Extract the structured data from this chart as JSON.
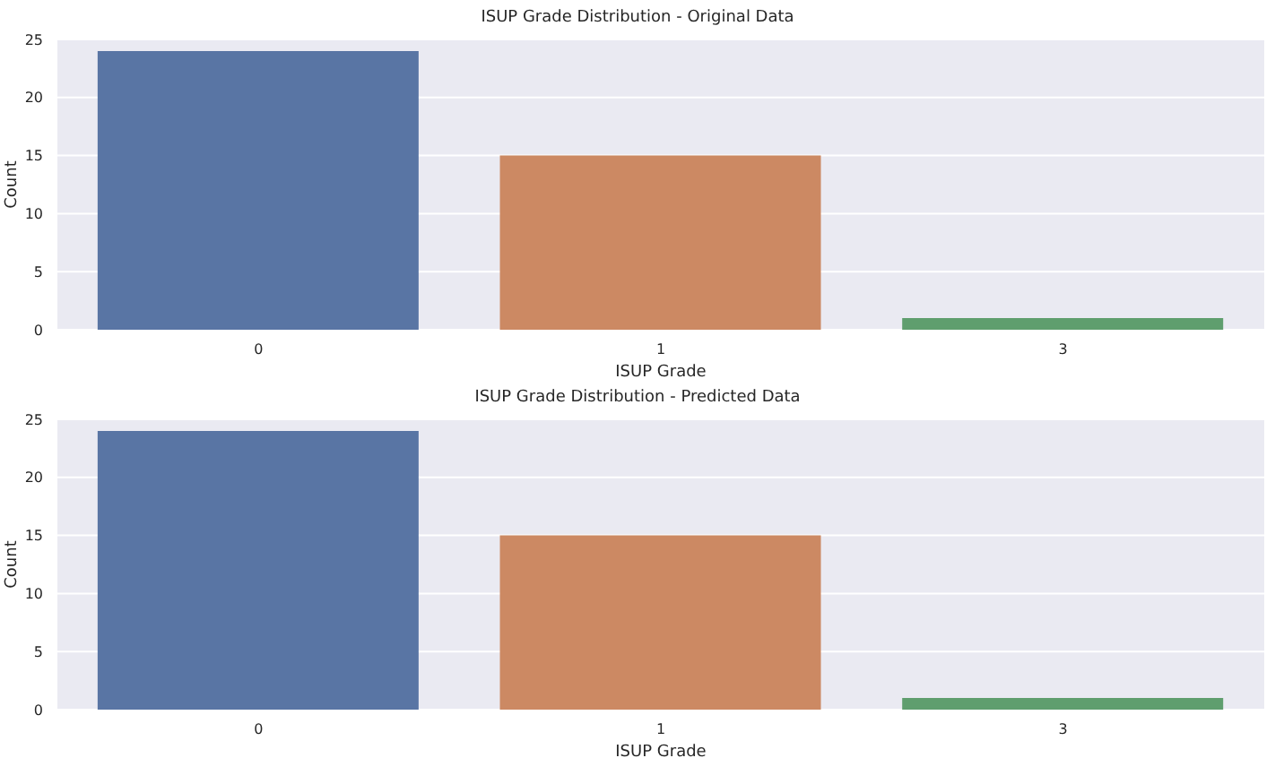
{
  "chart_data": [
    {
      "type": "bar",
      "title": "ISUP Grade Distribution - Original Data",
      "xlabel": "ISUP Grade",
      "ylabel": "Count",
      "categories": [
        "0",
        "1",
        "3"
      ],
      "values": [
        24,
        15,
        1
      ],
      "colors": [
        "#5975a4",
        "#cc8963",
        "#5f9e6e"
      ],
      "ylim": [
        0,
        25
      ],
      "yticks": [
        0,
        5,
        10,
        15,
        20,
        25
      ],
      "grid": "y"
    },
    {
      "type": "bar",
      "title": "ISUP Grade Distribution - Predicted Data",
      "xlabel": "ISUP Grade",
      "ylabel": "Count",
      "categories": [
        "0",
        "1",
        "3"
      ],
      "values": [
        24,
        15,
        1
      ],
      "colors": [
        "#5975a4",
        "#cc8963",
        "#5f9e6e"
      ],
      "ylim": [
        0,
        25
      ],
      "yticks": [
        0,
        5,
        10,
        15,
        20,
        25
      ],
      "grid": "y"
    }
  ]
}
